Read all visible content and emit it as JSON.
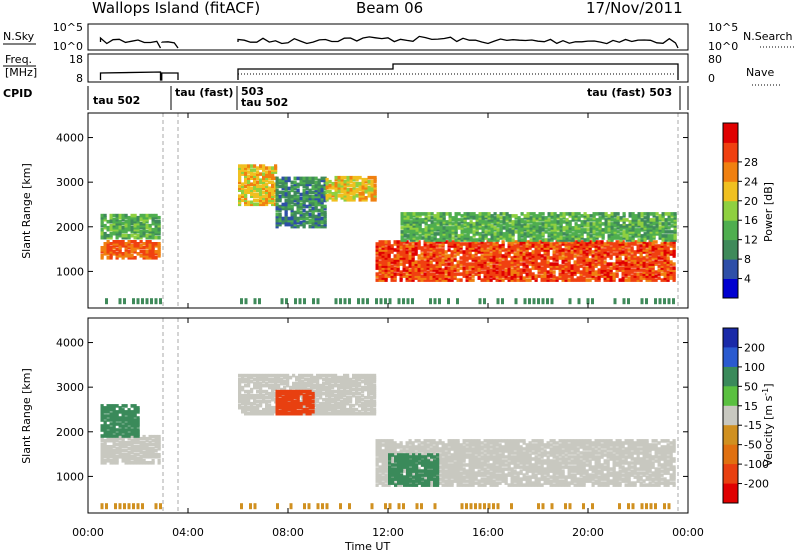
{
  "header": {
    "station": "Wallops Island (fitACF)",
    "beam": "Beam 06",
    "date": "17/Nov/2011"
  },
  "noise_panel": {
    "left_label": "N.Sky",
    "right_label": "N.Search",
    "left_ticks": [
      "10^5",
      "10^0"
    ],
    "right_ticks": [
      "10^5",
      "10^0"
    ]
  },
  "freq_panel": {
    "left_label_1": "Freq.",
    "left_label_2": "[MHz]",
    "right_label": "Nave",
    "left_ticks": [
      "18",
      "8"
    ],
    "right_ticks": [
      "80",
      "0"
    ]
  },
  "cpid_panel": {
    "label": "CPID",
    "segments": [
      "tau 502",
      "tau (fast)",
      "503",
      "tau 502",
      "tau (fast) 503"
    ]
  },
  "colors": {
    "power": [
      "#0000d0",
      "#2e4fa8",
      "#3f8a5a",
      "#4fae4f",
      "#8fd040",
      "#f0c020",
      "#f08010",
      "#f04010",
      "#e00000"
    ],
    "velocity": [
      "#1a2aa8",
      "#2a5acf",
      "#3a8a5a",
      "#5ac040",
      "#c8c8c0",
      "#d09020",
      "#e07010",
      "#e84010",
      "#e00000"
    ]
  },
  "chart_data": [
    {
      "type": "heatmap",
      "name": "power",
      "ylabel": "Slant Range [km]",
      "xlabel": "",
      "colorbar_label": "Power [dB]",
      "colorbar_ticks": [
        "4",
        "8",
        "12",
        "16",
        "20",
        "24",
        "28"
      ],
      "ylim": [
        180,
        4550
      ],
      "yticks": [
        1000,
        2000,
        3000,
        4000
      ],
      "xlim": [
        0,
        24
      ],
      "xticks": [
        "00:00",
        "04:00",
        "08:00",
        "12:00",
        "16:00",
        "20:00",
        "00:00"
      ],
      "echo_regions": [
        {
          "t0": 0.5,
          "t1": 2.9,
          "r_low": 1300,
          "r_high": 1700,
          "level_db": 26
        },
        {
          "t0": 0.5,
          "t1": 2.9,
          "r_low": 1750,
          "r_high": 2250,
          "level_db": 12
        },
        {
          "t0": 6.0,
          "t1": 7.5,
          "r_low": 2500,
          "r_high": 3400,
          "level_db": 20
        },
        {
          "t0": 7.5,
          "t1": 9.5,
          "r_low": 2000,
          "r_high": 3100,
          "level_db": 8
        },
        {
          "t0": 9.5,
          "t1": 11.5,
          "r_low": 2600,
          "r_high": 3100,
          "level_db": 20
        },
        {
          "t0": 11.5,
          "t1": 23.5,
          "r_low": 800,
          "r_high": 1700,
          "level_db": 28
        },
        {
          "t0": 12.5,
          "t1": 23.5,
          "r_low": 1700,
          "r_high": 2300,
          "level_db": 12
        }
      ]
    },
    {
      "type": "heatmap",
      "name": "velocity",
      "ylabel": "Slant Range [km]",
      "xlabel": "Time UT",
      "colorbar_label": "Velocity [m s^-1]",
      "colorbar_ticks": [
        "200",
        "100",
        "50",
        "15",
        "-15",
        "-50",
        "-100",
        "-200"
      ],
      "ylim": [
        180,
        4550
      ],
      "yticks": [
        1000,
        2000,
        3000,
        4000
      ],
      "xlim": [
        0,
        24
      ],
      "xticks": [
        "00:00",
        "04:00",
        "08:00",
        "12:00",
        "16:00",
        "20:00",
        "00:00"
      ],
      "echo_regions": [
        {
          "t0": 0.5,
          "t1": 2.9,
          "r_low": 1300,
          "r_high": 1900,
          "velocity": 0
        },
        {
          "t0": 0.5,
          "t1": 2.0,
          "r_low": 1900,
          "r_high": 2600,
          "velocity": 40
        },
        {
          "t0": 6.0,
          "t1": 11.5,
          "r_low": 2400,
          "r_high": 3300,
          "velocity": 0
        },
        {
          "t0": 7.5,
          "t1": 9.0,
          "r_low": 2400,
          "r_high": 2900,
          "velocity": -150
        },
        {
          "t0": 11.5,
          "t1": 23.5,
          "r_low": 800,
          "r_high": 1800,
          "velocity": 0
        },
        {
          "t0": 12.0,
          "t1": 14.0,
          "r_low": 800,
          "r_high": 1500,
          "velocity": 40
        }
      ]
    }
  ]
}
